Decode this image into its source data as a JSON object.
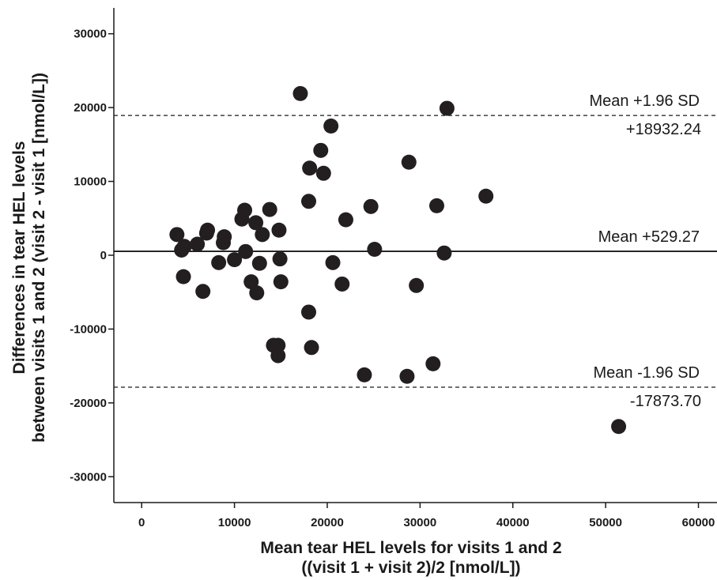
{
  "chart_data": {
    "type": "scatter",
    "xlabel_lines": [
      "Mean tear HEL levels for visits 1 and 2",
      "((visit 1 + visit 2)/2 [nmol/L])"
    ],
    "ylabel_lines": [
      "Differences in tear HEL levels",
      "between visits 1 and 2 (visit 2 - visit 1 [nmol/L])"
    ],
    "xlim": [
      -3000,
      62000
    ],
    "ylim": [
      -33500,
      33500
    ],
    "x_ticks": [
      0,
      10000,
      20000,
      30000,
      40000,
      50000,
      60000
    ],
    "y_ticks": [
      -30000,
      -20000,
      -10000,
      0,
      10000,
      20000,
      30000
    ],
    "grid": false,
    "point_color": "#231f20",
    "reference_lines": [
      {
        "label": "Mean +1.96 SD",
        "value_label": "+18932.24",
        "y": 18932.24,
        "style": "dashed"
      },
      {
        "label": "Mean +529.27",
        "value_label": "",
        "y": 529.27,
        "style": "solid"
      },
      {
        "label": "Mean -1.96 SD",
        "value_label": "-17873.70",
        "y": -17873.7,
        "style": "dashed"
      }
    ],
    "points": [
      {
        "x": 3800,
        "y": 2800
      },
      {
        "x": 4300,
        "y": 700
      },
      {
        "x": 4600,
        "y": 1200
      },
      {
        "x": 4500,
        "y": -2900
      },
      {
        "x": 6000,
        "y": 1500
      },
      {
        "x": 6600,
        "y": -4900
      },
      {
        "x": 7000,
        "y": 3000
      },
      {
        "x": 7100,
        "y": 3400
      },
      {
        "x": 8300,
        "y": -1000
      },
      {
        "x": 8800,
        "y": 1700
      },
      {
        "x": 8900,
        "y": 2500
      },
      {
        "x": 10000,
        "y": -600
      },
      {
        "x": 10800,
        "y": 4900
      },
      {
        "x": 11100,
        "y": 6100
      },
      {
        "x": 11200,
        "y": 500
      },
      {
        "x": 11800,
        "y": -3600
      },
      {
        "x": 12300,
        "y": 4400
      },
      {
        "x": 12400,
        "y": -5100
      },
      {
        "x": 12700,
        "y": -1100
      },
      {
        "x": 13000,
        "y": 2800
      },
      {
        "x": 13800,
        "y": 6200
      },
      {
        "x": 14200,
        "y": -12200
      },
      {
        "x": 14700,
        "y": -12200
      },
      {
        "x": 14700,
        "y": -13600
      },
      {
        "x": 14800,
        "y": 3400
      },
      {
        "x": 14900,
        "y": -500
      },
      {
        "x": 15000,
        "y": -3600
      },
      {
        "x": 17100,
        "y": 21900
      },
      {
        "x": 18000,
        "y": 7300
      },
      {
        "x": 18000,
        "y": -7700
      },
      {
        "x": 18100,
        "y": 11800
      },
      {
        "x": 18300,
        "y": -12500
      },
      {
        "x": 19300,
        "y": 14200
      },
      {
        "x": 19600,
        "y": 11100
      },
      {
        "x": 20400,
        "y": 17500
      },
      {
        "x": 20600,
        "y": -1000
      },
      {
        "x": 21600,
        "y": -3900
      },
      {
        "x": 22000,
        "y": 4800
      },
      {
        "x": 24000,
        "y": -16200
      },
      {
        "x": 24700,
        "y": 6600
      },
      {
        "x": 25100,
        "y": 800
      },
      {
        "x": 28600,
        "y": -16400
      },
      {
        "x": 28800,
        "y": 12600
      },
      {
        "x": 29600,
        "y": -4100
      },
      {
        "x": 31400,
        "y": -14700
      },
      {
        "x": 31800,
        "y": 6700
      },
      {
        "x": 32600,
        "y": 300
      },
      {
        "x": 32900,
        "y": 19900
      },
      {
        "x": 37100,
        "y": 8000
      },
      {
        "x": 51400,
        "y": -23200
      }
    ]
  }
}
